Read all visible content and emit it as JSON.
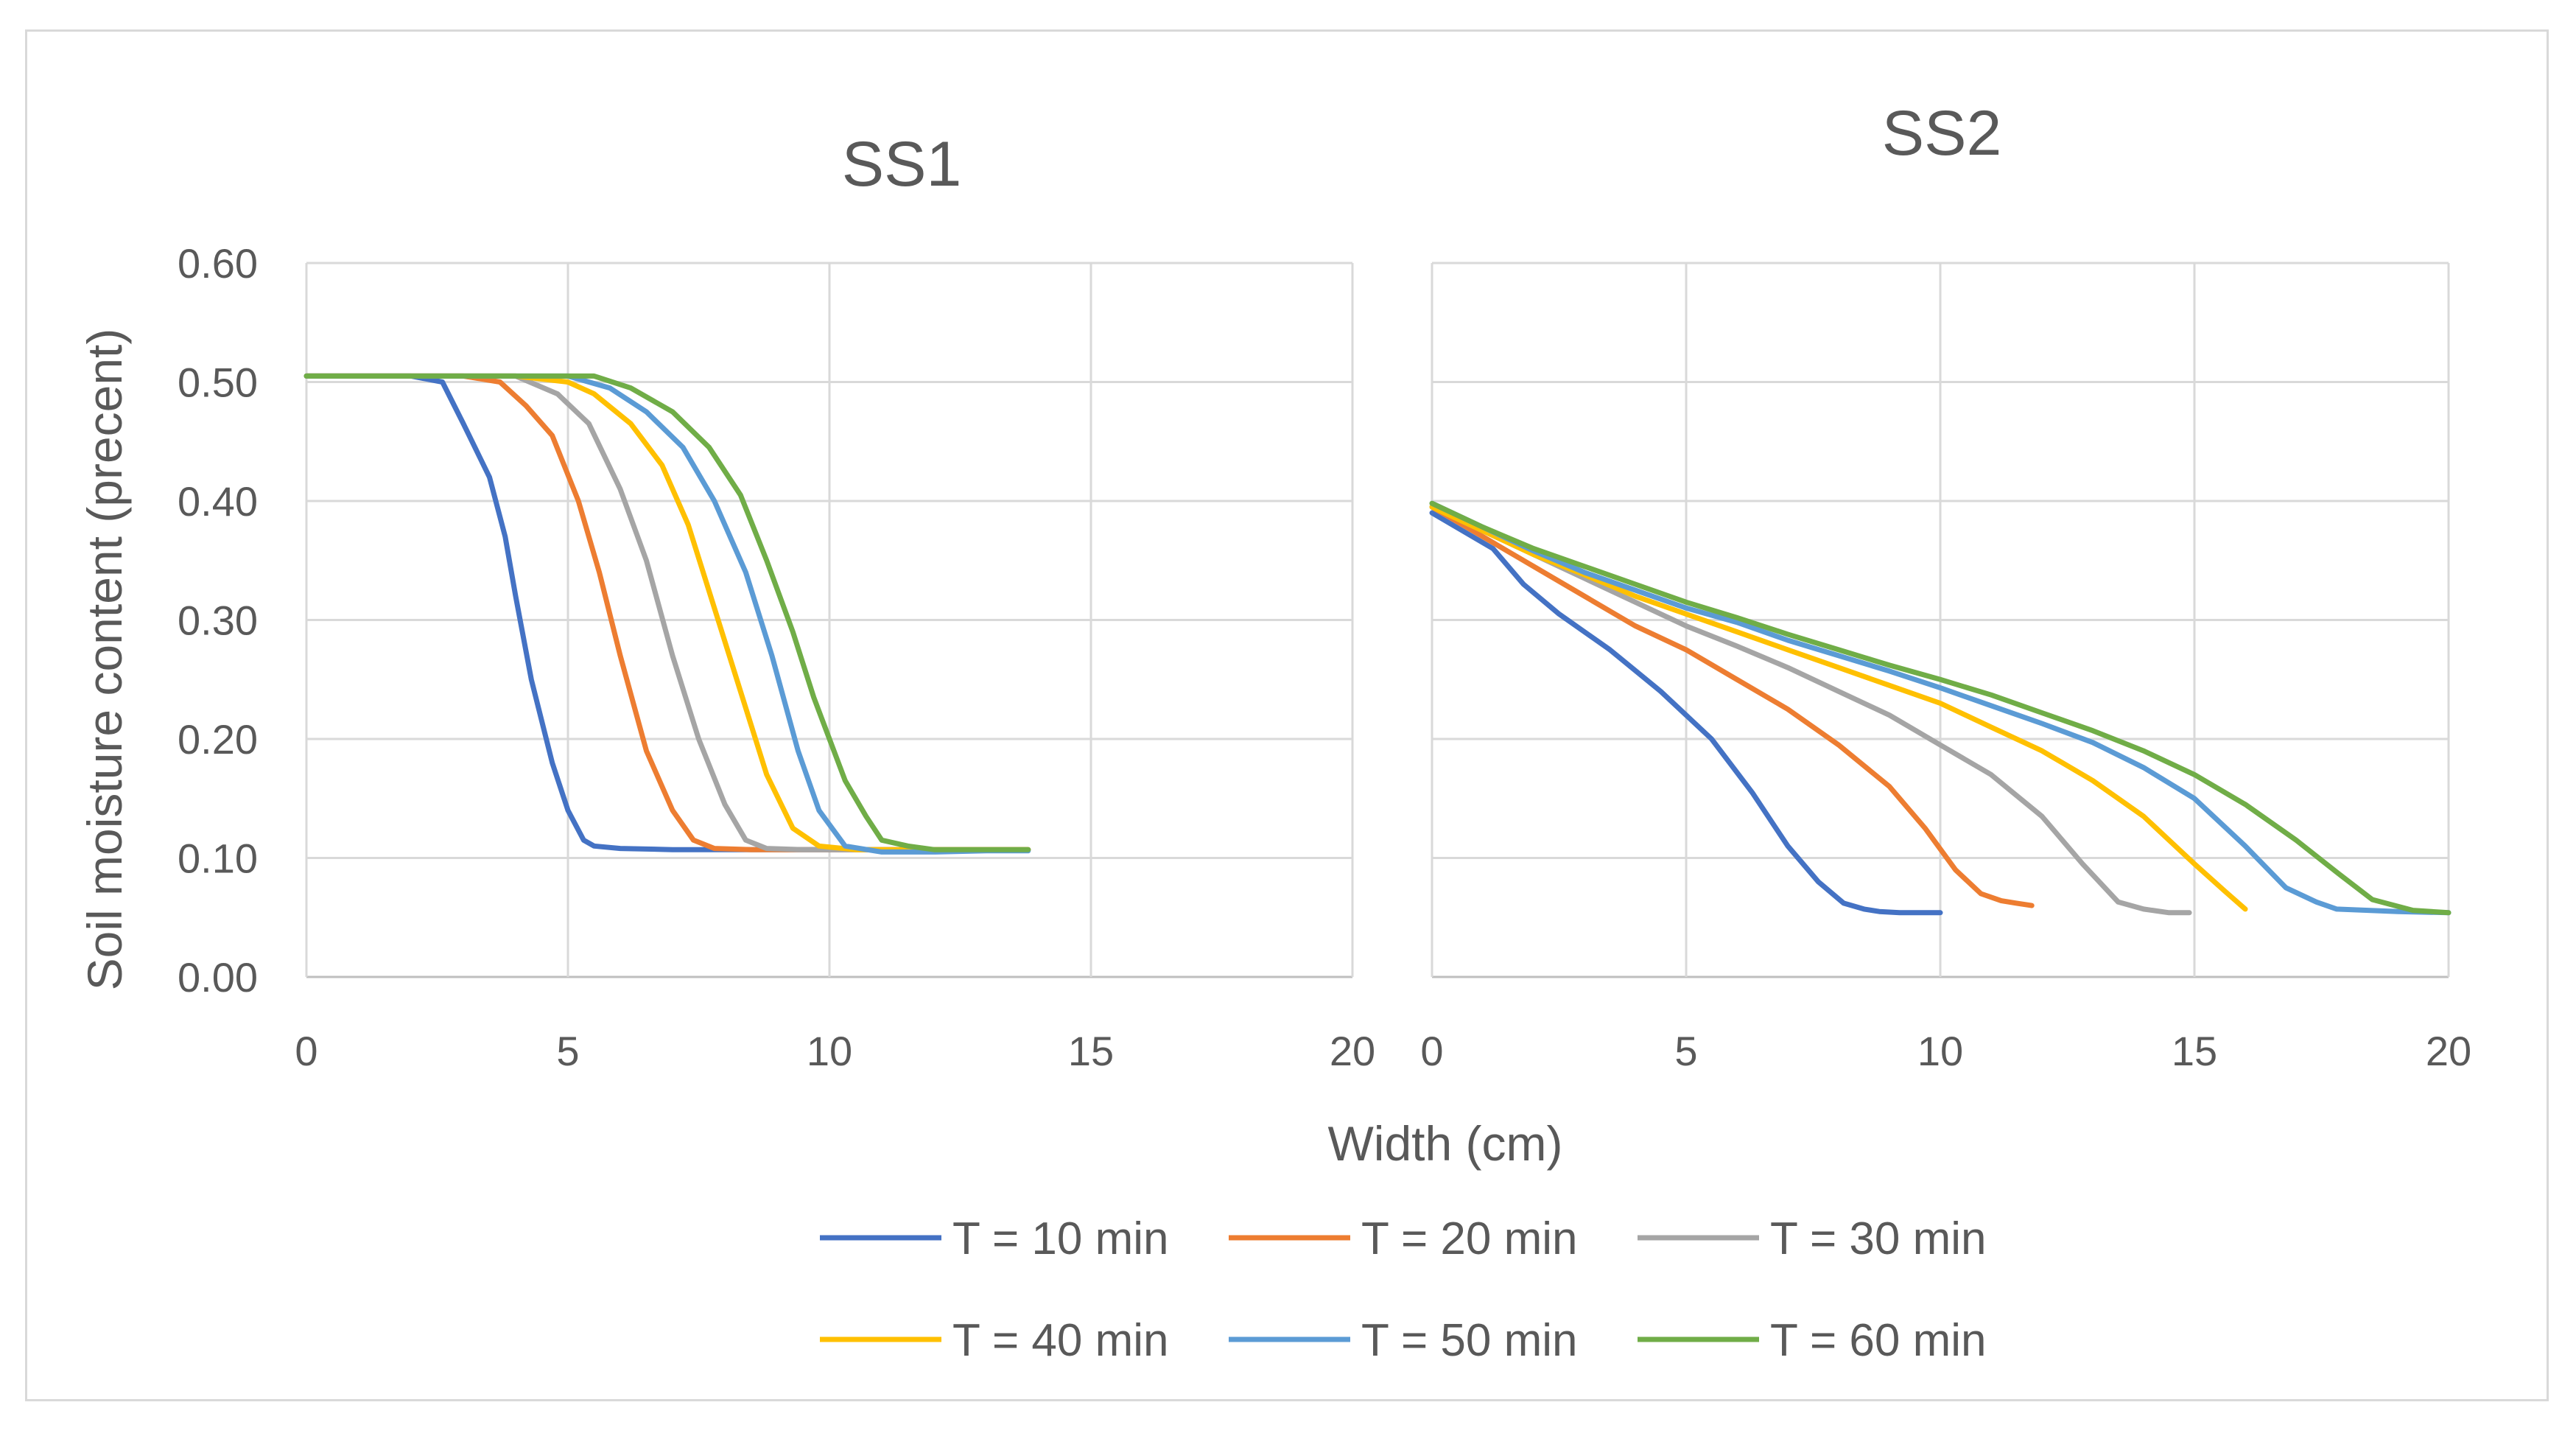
{
  "chart_data": [
    {
      "type": "line",
      "title": "SS1",
      "xlabel": "Width (cm)",
      "ylabel": "Soil moisture content (precent)",
      "xlim": [
        0,
        20
      ],
      "ylim": [
        0,
        0.6
      ],
      "xticks": [
        "0",
        "5",
        "10",
        "15",
        "20"
      ],
      "yticks": [
        "0.00",
        "0.10",
        "0.20",
        "0.30",
        "0.40",
        "0.50",
        "0.60"
      ],
      "grid": true,
      "series": [
        {
          "name": "T = 10 min",
          "color": "#4472C4",
          "x": [
            0,
            1,
            2,
            2.6,
            3,
            3.5,
            3.8,
            4.0,
            4.3,
            4.7,
            5.0,
            5.3,
            5.5,
            6,
            7,
            8,
            9,
            10,
            11,
            12,
            13,
            13.8
          ],
          "y": [
            0.505,
            0.505,
            0.505,
            0.5,
            0.465,
            0.42,
            0.37,
            0.32,
            0.25,
            0.18,
            0.14,
            0.115,
            0.11,
            0.108,
            0.107,
            0.107,
            0.107,
            0.107,
            0.107,
            0.107,
            0.107,
            0.107
          ]
        },
        {
          "name": "T = 20 min",
          "color": "#ED7D31",
          "x": [
            0,
            1,
            2,
            3,
            3.7,
            4.2,
            4.7,
            5.2,
            5.6,
            6.0,
            6.5,
            7.0,
            7.4,
            7.8,
            8.5,
            9,
            10,
            11,
            12,
            13,
            13.8
          ],
          "y": [
            0.505,
            0.505,
            0.505,
            0.505,
            0.5,
            0.48,
            0.455,
            0.4,
            0.34,
            0.27,
            0.19,
            0.14,
            0.115,
            0.108,
            0.107,
            0.107,
            0.107,
            0.107,
            0.107,
            0.107,
            0.107
          ]
        },
        {
          "name": "T = 30 min",
          "color": "#A5A5A5",
          "x": [
            0,
            1,
            2,
            3,
            4,
            4.8,
            5.4,
            6.0,
            6.5,
            7.0,
            7.5,
            8.0,
            8.4,
            8.8,
            9.5,
            10,
            11,
            12,
            13,
            13.8
          ],
          "y": [
            0.505,
            0.505,
            0.505,
            0.505,
            0.505,
            0.49,
            0.465,
            0.41,
            0.35,
            0.27,
            0.2,
            0.145,
            0.115,
            0.108,
            0.107,
            0.107,
            0.107,
            0.107,
            0.107,
            0.107
          ]
        },
        {
          "name": "T = 40 min",
          "color": "#FFC000",
          "x": [
            0,
            1,
            2,
            3,
            4,
            5,
            5.5,
            6.2,
            6.8,
            7.3,
            7.8,
            8.3,
            8.8,
            9.3,
            9.8,
            10.5,
            11,
            12,
            13,
            13.8
          ],
          "y": [
            0.505,
            0.505,
            0.505,
            0.505,
            0.505,
            0.5,
            0.49,
            0.465,
            0.43,
            0.38,
            0.31,
            0.24,
            0.17,
            0.125,
            0.11,
            0.107,
            0.107,
            0.107,
            0.107,
            0.107
          ]
        },
        {
          "name": "T = 50 min",
          "color": "#5B9BD5",
          "x": [
            0,
            1,
            2,
            3,
            4,
            5,
            5.8,
            6.5,
            7.2,
            7.8,
            8.4,
            8.9,
            9.4,
            9.8,
            10.3,
            11,
            12,
            13,
            13.8
          ],
          "y": [
            0.505,
            0.505,
            0.505,
            0.505,
            0.505,
            0.505,
            0.495,
            0.475,
            0.445,
            0.4,
            0.34,
            0.27,
            0.19,
            0.14,
            0.11,
            0.105,
            0.105,
            0.106,
            0.106
          ]
        },
        {
          "name": "T = 60 min",
          "color": "#70AD47",
          "x": [
            0,
            1,
            2,
            3,
            4,
            5,
            5.5,
            6.2,
            7.0,
            7.7,
            8.3,
            8.8,
            9.3,
            9.7,
            10.0,
            10.3,
            10.7,
            11.0,
            11.5,
            12,
            13,
            13.8
          ],
          "y": [
            0.505,
            0.505,
            0.505,
            0.505,
            0.505,
            0.505,
            0.505,
            0.495,
            0.475,
            0.445,
            0.405,
            0.35,
            0.29,
            0.235,
            0.2,
            0.165,
            0.135,
            0.115,
            0.11,
            0.107,
            0.107,
            0.107
          ]
        }
      ]
    },
    {
      "type": "line",
      "title": "SS2",
      "xlabel": "Width (cm)",
      "xlim": [
        0,
        20
      ],
      "ylim": [
        0,
        0.6
      ],
      "xticks": [
        "0",
        "5",
        "10",
        "15",
        "20"
      ],
      "grid": true,
      "series": [
        {
          "name": "T = 10 min",
          "color": "#4472C4",
          "x": [
            0,
            0.6,
            1.2,
            1.8,
            2.5,
            3.5,
            4.5,
            5.5,
            6.3,
            7,
            7.6,
            8.1,
            8.5,
            8.8,
            9.2,
            9.6,
            10
          ],
          "y": [
            0.39,
            0.375,
            0.36,
            0.33,
            0.305,
            0.275,
            0.24,
            0.2,
            0.155,
            0.11,
            0.08,
            0.062,
            0.057,
            0.055,
            0.054,
            0.054,
            0.054
          ]
        },
        {
          "name": "T = 20 min",
          "color": "#ED7D31",
          "x": [
            0,
            1,
            2,
            3,
            4,
            5,
            6,
            7,
            8,
            9,
            9.7,
            10.3,
            10.8,
            11.2,
            11.5,
            11.8
          ],
          "y": [
            0.395,
            0.37,
            0.345,
            0.32,
            0.295,
            0.275,
            0.25,
            0.225,
            0.195,
            0.16,
            0.125,
            0.09,
            0.07,
            0.064,
            0.062,
            0.06
          ]
        },
        {
          "name": "T = 30 min",
          "color": "#A5A5A5",
          "x": [
            0,
            1,
            2,
            3,
            4,
            5,
            6,
            7,
            8,
            9,
            10,
            11,
            12,
            12.8,
            13.5,
            14,
            14.5,
            14.9
          ],
          "y": [
            0.395,
            0.375,
            0.355,
            0.335,
            0.315,
            0.295,
            0.278,
            0.26,
            0.24,
            0.22,
            0.195,
            0.17,
            0.135,
            0.095,
            0.063,
            0.057,
            0.054,
            0.054
          ]
        },
        {
          "name": "T = 40 min",
          "color": "#FFC000",
          "x": [
            0,
            1,
            2,
            3,
            4,
            5,
            6,
            7,
            8,
            9,
            10,
            11,
            12,
            13,
            14,
            15,
            15.6,
            16.0
          ],
          "y": [
            0.395,
            0.375,
            0.355,
            0.338,
            0.32,
            0.305,
            0.29,
            0.275,
            0.26,
            0.245,
            0.23,
            0.21,
            0.19,
            0.165,
            0.135,
            0.095,
            0.072,
            0.057
          ]
        },
        {
          "name": "T = 50 min",
          "color": "#5B9BD5",
          "x": [
            0,
            1,
            2,
            3,
            4,
            5,
            6,
            7,
            8,
            9,
            10,
            11,
            12,
            13,
            14,
            15,
            16,
            16.8,
            17.4,
            17.8,
            19,
            20
          ],
          "y": [
            0.398,
            0.378,
            0.358,
            0.34,
            0.325,
            0.31,
            0.298,
            0.283,
            0.27,
            0.257,
            0.243,
            0.228,
            0.213,
            0.197,
            0.176,
            0.15,
            0.11,
            0.075,
            0.063,
            0.057,
            0.055,
            0.054
          ]
        },
        {
          "name": "T = 60 min",
          "color": "#70AD47",
          "x": [
            0,
            1,
            2,
            3,
            4,
            5,
            6,
            7,
            8,
            9,
            10,
            11,
            12,
            13,
            14,
            15,
            16,
            17,
            17.8,
            18.5,
            19.3,
            20
          ],
          "y": [
            0.398,
            0.378,
            0.36,
            0.345,
            0.33,
            0.315,
            0.302,
            0.288,
            0.275,
            0.262,
            0.25,
            0.237,
            0.222,
            0.207,
            0.19,
            0.17,
            0.145,
            0.115,
            0.088,
            0.065,
            0.056,
            0.054
          ]
        }
      ]
    }
  ],
  "legend": [
    "T = 10 min",
    "T = 20 min",
    "T = 30 min",
    "T = 40 min",
    "T = 50 min",
    "T = 60 min"
  ],
  "shared_xlabel": "Width (cm)",
  "shared_ylabel": "Soil moisture content (precent)"
}
